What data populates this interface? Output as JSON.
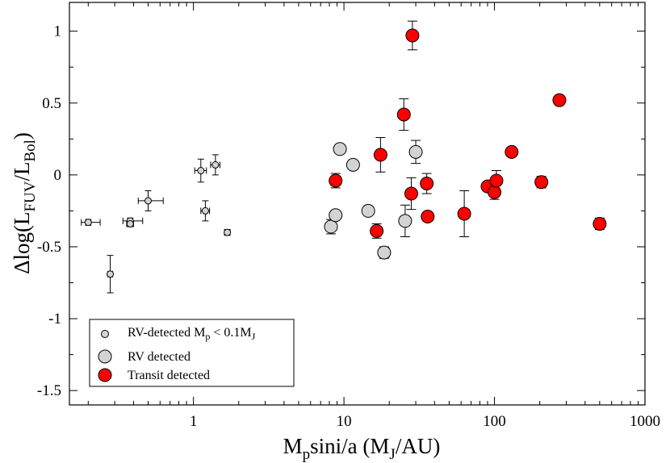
{
  "chart_data": {
    "type": "scatter",
    "title": "",
    "xlabel": "M_p sini/a (M_J/AU)",
    "ylabel": "Δlog(L_FUV/L_Bol)",
    "xscale": "log",
    "xlim": [
      0.15,
      1000
    ],
    "ylim": [
      -1.6,
      1.2
    ],
    "grid": false,
    "legend_position": "lower-left",
    "xticks": [
      {
        "value": 1,
        "label": "1"
      },
      {
        "value": 10,
        "label": "10"
      },
      {
        "value": 100,
        "label": "100"
      },
      {
        "value": 1000,
        "label": "1000"
      }
    ],
    "yticks": [
      {
        "value": 1,
        "label": "1"
      },
      {
        "value": 0.5,
        "label": "0.5"
      },
      {
        "value": 0,
        "label": "0"
      },
      {
        "value": -0.5,
        "label": "-0.5"
      },
      {
        "value": -1,
        "label": "-1"
      },
      {
        "value": -1.5,
        "label": "-1.5"
      }
    ],
    "series": [
      {
        "name": "RV-detected M_p < 0.1M_J",
        "marker": "small-circle",
        "color": "#d3d3d3",
        "points": [
          {
            "x": 0.2,
            "y": -0.33,
            "xerr": [
              0.02,
              0.04
            ],
            "yerr": 0.02
          },
          {
            "x": 0.28,
            "y": -0.69,
            "xerr": [
              0.01,
              0.01
            ],
            "yerr": 0.13
          },
          {
            "x": 0.38,
            "y": -0.32,
            "xerr": [
              0.04,
              0.08
            ],
            "yerr": 0.02
          },
          {
            "x": 0.38,
            "y": -0.34,
            "xerr": [
              0.02,
              0.02
            ],
            "yerr": 0.02
          },
          {
            "x": 0.5,
            "y": -0.18,
            "xerr": [
              0.07,
              0.13
            ],
            "yerr": 0.07
          },
          {
            "x": 1.12,
            "y": 0.03,
            "xerr": [
              0.1,
              0.1
            ],
            "yerr": 0.08
          },
          {
            "x": 1.2,
            "y": -0.25,
            "xerr": [
              0.08,
              0.08
            ],
            "yerr": 0.07
          },
          {
            "x": 1.4,
            "y": 0.07,
            "xerr": [
              0.1,
              0.1
            ],
            "yerr": 0.07
          },
          {
            "x": 1.68,
            "y": -0.4,
            "xerr": [
              0.07,
              0.07
            ],
            "yerr": 0.02
          }
        ]
      },
      {
        "name": "RV detected",
        "marker": "circle",
        "color": "#d3d3d3",
        "points": [
          {
            "x": 8.2,
            "y": -0.36,
            "xerr": [
              0.3,
              0.3
            ],
            "yerr": 0.05
          },
          {
            "x": 8.8,
            "y": -0.28,
            "xerr": [
              0,
              0
            ],
            "yerr": 0.0
          },
          {
            "x": 9.4,
            "y": 0.18,
            "xerr": [
              0.3,
              0.3
            ],
            "yerr": 0.02
          },
          {
            "x": 11.5,
            "y": 0.07,
            "xerr": [
              0.3,
              0.3
            ],
            "yerr": 0.02
          },
          {
            "x": 14.5,
            "y": -0.25,
            "xerr": [
              0.4,
              0.4
            ],
            "yerr": 0.02
          },
          {
            "x": 18.5,
            "y": -0.54,
            "xerr": [
              1.3,
              1.5
            ],
            "yerr": 0.04
          },
          {
            "x": 25.5,
            "y": -0.32,
            "xerr": [
              0,
              0
            ],
            "yerr": 0.11
          },
          {
            "x": 30.0,
            "y": 0.16,
            "xerr": [
              0,
              0
            ],
            "yerr": 0.08
          }
        ]
      },
      {
        "name": "Transit detected",
        "marker": "circle",
        "color": "#ff0000",
        "points": [
          {
            "x": 8.8,
            "y": -0.04,
            "xerr": [
              0.6,
              0.7
            ],
            "yerr": 0.05
          },
          {
            "x": 16.5,
            "y": -0.39,
            "xerr": [
              0,
              0
            ],
            "yerr": 0.05
          },
          {
            "x": 17.5,
            "y": 0.14,
            "xerr": [
              0,
              0
            ],
            "yerr": 0.12
          },
          {
            "x": 25.0,
            "y": 0.42,
            "xerr": [
              0,
              0
            ],
            "yerr": 0.11
          },
          {
            "x": 28.0,
            "y": -0.13,
            "xerr": [
              0,
              0
            ],
            "yerr": 0.11
          },
          {
            "x": 28.5,
            "y": 0.97,
            "xerr": [
              0,
              0
            ],
            "yerr": 0.1
          },
          {
            "x": 35.5,
            "y": -0.06,
            "xerr": [
              0,
              0
            ],
            "yerr": 0.07
          },
          {
            "x": 36.0,
            "y": -0.29,
            "xerr": [
              0,
              0
            ],
            "yerr": 0.03
          },
          {
            "x": 63.0,
            "y": -0.27,
            "xerr": [
              0,
              0
            ],
            "yerr": 0.16
          },
          {
            "x": 90.0,
            "y": -0.08,
            "xerr": [
              6,
              6
            ],
            "yerr": 0.03
          },
          {
            "x": 100.0,
            "y": -0.12,
            "xerr": [
              0,
              0
            ],
            "yerr": 0.05
          },
          {
            "x": 103.0,
            "y": -0.04,
            "xerr": [
              0,
              0
            ],
            "yerr": 0.07
          },
          {
            "x": 130.0,
            "y": 0.16,
            "xerr": [
              4,
              4
            ],
            "yerr": 0.02
          },
          {
            "x": 205.0,
            "y": -0.05,
            "xerr": [
              0,
              0
            ],
            "yerr": 0.04
          },
          {
            "x": 270.0,
            "y": 0.52,
            "xerr": [
              10,
              10
            ],
            "yerr": 0.02
          },
          {
            "x": 500.0,
            "y": -0.34,
            "xerr": [
              0,
              0
            ],
            "yerr": 0.04
          }
        ]
      }
    ],
    "legend": [
      {
        "label": "RV-detected M",
        "sub": "p",
        "rest": " < 0.1M",
        "sub2": "J",
        "marker": "small-circle",
        "color": "#d3d3d3"
      },
      {
        "label": "RV detected",
        "sub": "",
        "rest": "",
        "sub2": "",
        "marker": "circle",
        "color": "#d3d3d3"
      },
      {
        "label": "Transit detected",
        "sub": "",
        "rest": "",
        "sub2": "",
        "marker": "circle",
        "color": "#ff0000"
      }
    ],
    "axis_titles": {
      "x": {
        "main": "M",
        "sub": "p",
        "mid": "sini/a (M",
        "sub2": "J",
        "end": "/AU)"
      },
      "y": {
        "main": "Δlog(L",
        "sub": "FUV",
        "mid": "/L",
        "sub2": "Bol",
        "end": ")"
      }
    }
  }
}
